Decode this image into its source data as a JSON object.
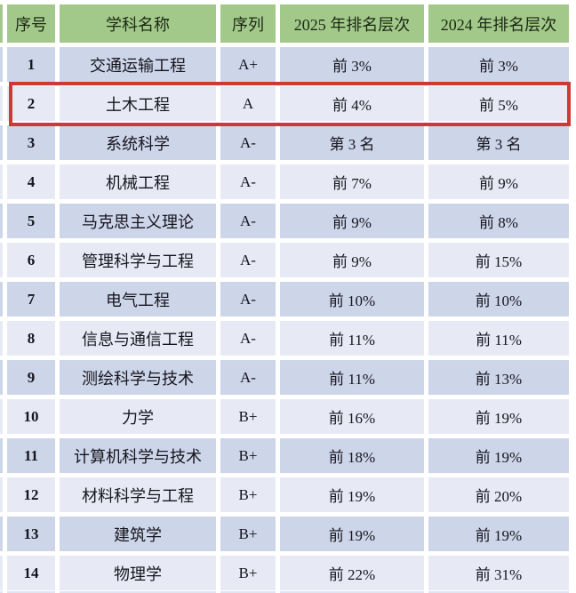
{
  "chart_data": {
    "type": "table",
    "columns": [
      "序号",
      "学科名称",
      "序列",
      "2025 年排名层次",
      "2024 年排名层次"
    ],
    "rows": [
      [
        "1",
        "交通运输工程",
        "A+",
        "前 3%",
        "前 3%"
      ],
      [
        "2",
        "土木工程",
        "A",
        "前 4%",
        "前 5%"
      ],
      [
        "3",
        "系统科学",
        "A-",
        "第 3 名",
        "第 3 名"
      ],
      [
        "4",
        "机械工程",
        "A-",
        "前 7%",
        "前 9%"
      ],
      [
        "5",
        "马克思主义理论",
        "A-",
        "前 9%",
        "前 8%"
      ],
      [
        "6",
        "管理科学与工程",
        "A-",
        "前 9%",
        "前 15%"
      ],
      [
        "7",
        "电气工程",
        "A-",
        "前 10%",
        "前 10%"
      ],
      [
        "8",
        "信息与通信工程",
        "A-",
        "前 11%",
        "前 11%"
      ],
      [
        "9",
        "测绘科学与技术",
        "A-",
        "前 11%",
        "前 13%"
      ],
      [
        "10",
        "力学",
        "B+",
        "前 16%",
        "前 19%"
      ],
      [
        "11",
        "计算机科学与技术",
        "B+",
        "前 18%",
        "前 19%"
      ],
      [
        "12",
        "材料科学与工程",
        "B+",
        "前 19%",
        "前 20%"
      ],
      [
        "13",
        "建筑学",
        "B+",
        "前 19%",
        "前 19%"
      ],
      [
        "14",
        "物理学",
        "B+",
        "前 22%",
        "前 31%"
      ]
    ],
    "highlight": {
      "row_number": "2",
      "subject": "土木工程",
      "style": "red outline box"
    },
    "layout_hints": {
      "header_row": true,
      "zebra_striping": "odd rows darker lavender, even rows lighter",
      "cell_gap_color": "#ffffff"
    }
  },
  "styles": {
    "header_bg": "#a2c98a",
    "header_text": "#1c2913",
    "row_odd": "#cdd5e9",
    "row_even": "#e7eaf5",
    "text": "#15151d",
    "highlight_border": "#ce3a33",
    "background": "#ffffff"
  }
}
